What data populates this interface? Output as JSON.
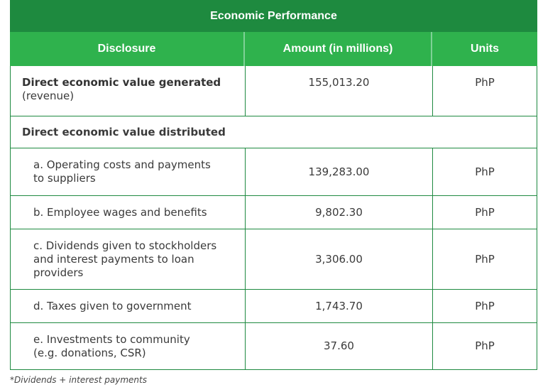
{
  "title": "Economic Performance",
  "headers": {
    "disclosure": "Disclosure",
    "amount": "Amount (in millions)",
    "units": "Units"
  },
  "rows": [
    {
      "label_bold": "Direct economic value generated",
      "label_rest": "(revenue)",
      "amount": "155,013.20",
      "unit": "PhP"
    },
    {
      "section": "Direct economic value distributed"
    },
    {
      "label": "a. Operating costs and payments to suppliers",
      "amount": "139,283.00",
      "unit": "PhP"
    },
    {
      "label": "b. Employee wages and benefits",
      "amount": "9,802.30",
      "unit": "PhP"
    },
    {
      "label": "c. Dividends given to stockholders and interest payments to loan providers",
      "amount": "3,306.00",
      "unit": "PhP"
    },
    {
      "label": "d. Taxes given to government",
      "amount": "1,743.70",
      "unit": "PhP"
    },
    {
      "label": "e. Investments to community (e.g. donations, CSR)",
      "amount": "37.60",
      "unit": "PhP"
    }
  ],
  "footnote": "*Dividends + interest payments"
}
